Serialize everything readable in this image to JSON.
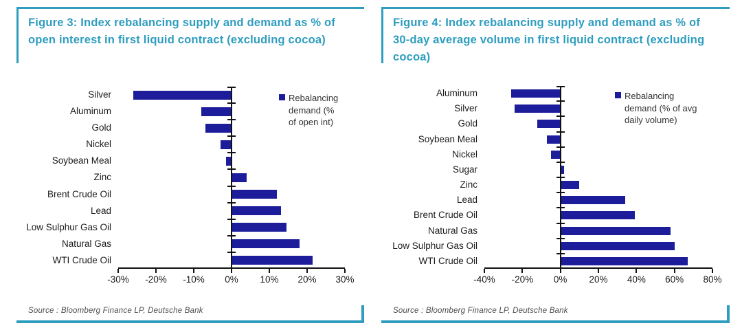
{
  "theme": {
    "teal": "#2e9dbf",
    "navy": "#1d1d9c",
    "axis_color": "#111111",
    "label_color": "#1a1a1a",
    "source_color": "#4d4d4d",
    "background": "#ffffff"
  },
  "panels": [
    {
      "title": "Figure 3: Index rebalancing supply and demand as % of open interest in first liquid contract (excluding cocoa)",
      "legend": "Rebalancing demand (% of open int)",
      "source": "Source : Bloomberg Finance LP, Deutsche Bank"
    },
    {
      "title": "Figure 4: Index rebalancing supply and demand as % of 30-day average volume in first liquid contract (excluding cocoa)",
      "legend": "Rebalancing demand (% of avg daily volume)",
      "source": "Source : Bloomberg Finance LP, Deutsche Bank"
    }
  ],
  "chart_data": [
    {
      "type": "bar",
      "orientation": "horizontal",
      "title": "Figure 3: Index rebalancing supply and demand as % of open interest in first liquid contract (excluding cocoa)",
      "categories": [
        "Silver",
        "Aluminum",
        "Gold",
        "Nickel",
        "Soybean Meal",
        "Zinc",
        "Brent Crude Oil",
        "Lead",
        "Low Sulphur Gas Oil",
        "Natural Gas",
        "WTI Crude Oil"
      ],
      "values": [
        -26,
        -8,
        -7,
        -3,
        -1.5,
        4,
        12,
        13,
        14.5,
        18,
        21.5
      ],
      "unit": "%",
      "xlim": [
        -30,
        30
      ],
      "tick_values": [
        -30,
        -20,
        -10,
        0,
        10,
        20,
        30
      ],
      "tick_labels": [
        "-30%",
        "-20%",
        "-10%",
        "0%",
        "10%",
        "20%",
        "30%"
      ],
      "legend": [
        "Rebalancing demand (% of open int)"
      ],
      "legend_position": "upper right",
      "bar_color": "#1d1d9c",
      "grid": false,
      "xlabel": "",
      "ylabel": ""
    },
    {
      "type": "bar",
      "orientation": "horizontal",
      "title": "Figure 4: Index rebalancing supply and demand as % of 30-day average volume in first liquid contract (excluding cocoa)",
      "categories": [
        "Aluminum",
        "Silver",
        "Gold",
        "Soybean Meal",
        "Nickel",
        "Sugar",
        "Zinc",
        "Lead",
        "Brent Crude Oil",
        "Natural Gas",
        "Low Sulphur Gas Oil",
        "WTI Crude Oil"
      ],
      "values": [
        -26,
        -24,
        -12,
        -7,
        -5,
        2,
        10,
        34,
        39,
        58,
        60,
        67
      ],
      "unit": "%",
      "xlim": [
        -40,
        80
      ],
      "tick_values": [
        -40,
        -20,
        0,
        20,
        40,
        60,
        80
      ],
      "tick_labels": [
        "-40%",
        "-20%",
        "0%",
        "20%",
        "40%",
        "60%",
        "80%"
      ],
      "legend": [
        "Rebalancing demand (% of avg daily volume)"
      ],
      "legend_position": "upper right",
      "bar_color": "#1d1d9c",
      "grid": false,
      "xlabel": "",
      "ylabel": ""
    }
  ]
}
